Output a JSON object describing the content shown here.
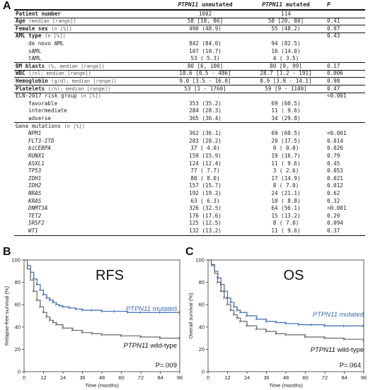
{
  "panels": {
    "a": "A",
    "b": "B",
    "c": "C"
  },
  "table": {
    "header": {
      "gene_name": "PTPN11",
      "col_unmut": "unmutated",
      "col_mut": "mutated",
      "col_p": "P"
    },
    "rows": [
      {
        "label": "Patient number",
        "unit": "",
        "unmut": "1002",
        "mut": "114",
        "p": "",
        "bold": true,
        "line": "thick"
      },
      {
        "label": "Age",
        "unit": "(median [range])",
        "unmut": "58 [18, 86]",
        "mut": "58 [20, 80]",
        "p": "0.41",
        "bold": true,
        "line": "thick"
      },
      {
        "label": "Female sex",
        "unit": "(n [%])",
        "unmut": "490 (48.9)",
        "mut": "55 (48.2)",
        "p": "0.97",
        "bold": true,
        "line": "thick"
      },
      {
        "label": "AML type",
        "unit": "(n [%])",
        "unmut": "",
        "mut": "",
        "p": "0.43",
        "bold": true,
        "line": "thick"
      },
      {
        "label": "de novo AML",
        "sub": true,
        "unmut": "842 (84.0)",
        "mut": "94 (82.5)",
        "p": ""
      },
      {
        "label": "sAML",
        "sub": true,
        "unmut": "107 (10.7)",
        "mut": "16 (14.0)",
        "p": ""
      },
      {
        "label": "tAML",
        "sub": true,
        "unmut": "53 ( 5.3)",
        "mut": "4 ( 3.5)",
        "p": ""
      },
      {
        "label": "BM blasts",
        "unit": "(%, median [range])",
        "unmut": "80 [6, 100]",
        "mut": "80 [9, 99]",
        "p": "0.17",
        "bold": true,
        "line": "thick"
      },
      {
        "label": "WBC",
        "unit": "(/nl; median [range])",
        "unmut": "18.6 [0.5 - 486]",
        "mut": "28.7 [1.2 - 191]",
        "p": "0.006",
        "bold": true,
        "line": "thick"
      },
      {
        "label": "Hemoglobin",
        "unit": "(g/dl; median [range])",
        "unmut": "9.0 [3.5 - 16.0]",
        "mut": "8.9 [3.9 - 14.1]",
        "p": "0.98",
        "bold": true,
        "line": "thick"
      },
      {
        "label": "Platelets",
        "unit": "(/nl; median [range])",
        "unmut": "53 [1 - 1760]",
        "mut": "59 [9 - 1100]",
        "p": "0.47",
        "bold": true,
        "line": "thick"
      },
      {
        "label": "ELN-2017 risk group",
        "unit": "(n [%])",
        "unmut": "",
        "mut": "",
        "p": "<0.001",
        "line": "thick"
      },
      {
        "label": "favorable",
        "sub": true,
        "unmut": "353 (35.2)",
        "mut": "69 (60.5)",
        "p": ""
      },
      {
        "label": "intermediate",
        "sub": true,
        "unmut": "284 (28.3)",
        "mut": "11 ( 9.6)",
        "p": ""
      },
      {
        "label": "adverse",
        "sub": true,
        "unmut": "365 (36.4)",
        "mut": "34 (29.8)",
        "p": ""
      },
      {
        "label": "Gene mutations",
        "unit": "(n [%])",
        "unmut": "",
        "mut": "",
        "p": "",
        "line": "thick"
      },
      {
        "label": "NPM1",
        "sub": true,
        "gene": true,
        "unmut": "362 (36.1)",
        "mut": "69 (60.5)",
        "p": "<0.001"
      },
      {
        "label": "FLT3-ITD",
        "sub": true,
        "gene": true,
        "unmut": "283 (28.2)",
        "mut": "20 (17.5)",
        "p": "0.014"
      },
      {
        "label": "biCEBPA",
        "sub": true,
        "gene": true,
        "unmut": "37 ( 4.0)",
        "mut": "0 ( 0.0)",
        "p": "0.026"
      },
      {
        "label": "RUNX1",
        "sub": true,
        "gene": true,
        "unmut": "159 (15.9)",
        "mut": "19 (16.7)",
        "p": "0.79"
      },
      {
        "label": "ASXL1",
        "sub": true,
        "gene": true,
        "unmut": "124 (12.4)",
        "mut": "11 ( 9.6)",
        "p": "0.45"
      },
      {
        "label": "TP53",
        "sub": true,
        "gene": true,
        "unmut": "77 ( 7.7)",
        "mut": "3 ( 2.6)",
        "p": "0.053"
      },
      {
        "label": "IDH1",
        "sub": true,
        "gene": true,
        "unmut": "80 ( 8.0)",
        "mut": "17 (14.9)",
        "p": "0.021"
      },
      {
        "label": "IDH2",
        "sub": true,
        "gene": true,
        "unmut": "157 (15.7)",
        "mut": "8 ( 7.0)",
        "p": "0.012"
      },
      {
        "label": "NRAS",
        "sub": true,
        "gene": true,
        "unmut": "192 (19.2)",
        "mut": "24 (21.1)",
        "p": "0.62"
      },
      {
        "label": "KRAS",
        "sub": true,
        "gene": true,
        "unmut": "63 ( 6.3)",
        "mut": "10 ( 8.8)",
        "p": "0.32"
      },
      {
        "label": "DNMT3A",
        "sub": true,
        "gene": true,
        "unmut": "326 (32.5)",
        "mut": "64 (56.1)",
        "p": "<0.001"
      },
      {
        "label": "TET2",
        "sub": true,
        "gene": true,
        "unmut": "176 (17.6)",
        "mut": "15 (13.2)",
        "p": "0.29"
      },
      {
        "label": "SRSF2",
        "sub": true,
        "gene": true,
        "unmut": "125 (12.5)",
        "mut": "8 ( 7.0)",
        "p": "0.094"
      },
      {
        "label": "WT1",
        "sub": true,
        "gene": true,
        "unmut": "132 (13.2)",
        "mut": "11 ( 9.6)",
        "p": "0.37"
      }
    ]
  },
  "chart_data": [
    {
      "type": "line",
      "title": "RFS",
      "ylabel": "Relapse-free survival (%)",
      "xlabel": "Time (months)",
      "xlim": [
        0,
        96
      ],
      "ylim": [
        0,
        100
      ],
      "xticks": [
        0,
        12,
        24,
        36,
        48,
        60,
        72,
        84,
        96
      ],
      "yticks": [
        0,
        20,
        40,
        60,
        80,
        100
      ],
      "pvalue": "P=.009",
      "series": [
        {
          "name": "PTPN11 mutated",
          "name_italic": "PTPN11",
          "name_rest": " mutated",
          "color": "#3a6bb5",
          "x": [
            0,
            2,
            4,
            6,
            8,
            10,
            12,
            14,
            16,
            18,
            20,
            22,
            24,
            28,
            32,
            36,
            42,
            48,
            56,
            64,
            72,
            84,
            96
          ],
          "y": [
            100,
            95,
            89,
            83,
            78,
            73,
            69,
            66,
            64,
            62,
            60,
            59,
            58,
            57,
            56,
            55,
            55,
            54,
            54,
            53,
            53,
            53,
            53
          ]
        },
        {
          "name": "PTPN11 wild-type",
          "name_italic": "PTPN11",
          "name_rest": " wild-type",
          "color": "#666666",
          "x": [
            0,
            2,
            4,
            6,
            8,
            10,
            12,
            14,
            16,
            18,
            20,
            24,
            30,
            36,
            42,
            48,
            60,
            72,
            84,
            96
          ],
          "y": [
            100,
            92,
            82,
            72,
            64,
            58,
            53,
            49,
            46,
            44,
            42,
            39,
            37,
            35,
            34,
            33,
            32,
            31,
            30,
            30
          ]
        }
      ]
    },
    {
      "type": "line",
      "title": "OS",
      "ylabel": "Overall survival (%)",
      "xlabel": "Time (months)",
      "xlim": [
        0,
        96
      ],
      "ylim": [
        0,
        100
      ],
      "xticks": [
        0,
        12,
        24,
        36,
        48,
        60,
        72,
        84,
        96
      ],
      "yticks": [
        0,
        20,
        40,
        60,
        80,
        100
      ],
      "pvalue": "P=.064",
      "series": [
        {
          "name": "PTPN11 mutated",
          "name_italic": "PTPN11",
          "name_rest": " mutated",
          "color": "#3a6bb5",
          "x": [
            0,
            2,
            4,
            6,
            8,
            10,
            12,
            14,
            16,
            18,
            20,
            24,
            30,
            36,
            42,
            48,
            56,
            64,
            72,
            84,
            96
          ],
          "y": [
            100,
            96,
            90,
            84,
            78,
            72,
            66,
            62,
            58,
            55,
            53,
            50,
            47,
            45,
            44,
            43,
            42,
            42,
            41,
            41,
            41
          ]
        },
        {
          "name": "PTPN11 wild-type",
          "name_italic": "PTPN11",
          "name_rest": " wild-type",
          "color": "#666666",
          "x": [
            0,
            2,
            4,
            6,
            8,
            10,
            12,
            14,
            16,
            18,
            20,
            24,
            30,
            36,
            42,
            48,
            60,
            72,
            84,
            96
          ],
          "y": [
            100,
            95,
            88,
            80,
            72,
            66,
            60,
            55,
            51,
            48,
            45,
            41,
            38,
            36,
            34,
            33,
            31,
            30,
            29,
            28
          ]
        }
      ]
    }
  ]
}
